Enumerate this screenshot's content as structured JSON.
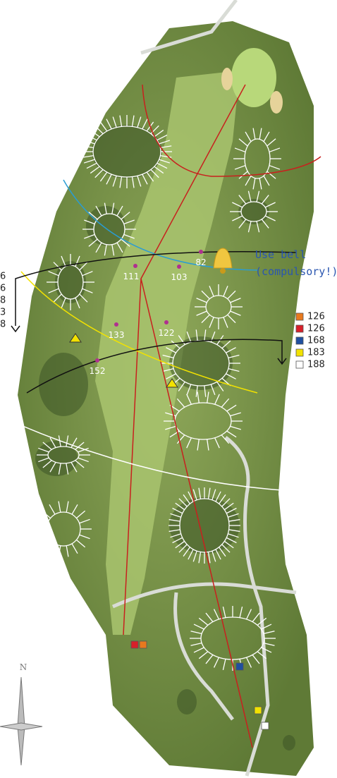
{
  "annotation": {
    "lines": [
      "Use bell",
      "(compulsory!)"
    ]
  },
  "distance_markers": [
    {
      "label": "82"
    },
    {
      "label": "111"
    },
    {
      "label": "103"
    },
    {
      "label": "133"
    },
    {
      "label": "122"
    },
    {
      "label": "152"
    }
  ],
  "tee_legend": [
    {
      "color": "#e8791e",
      "label": "126"
    },
    {
      "color": "#d8202a",
      "label": "126"
    },
    {
      "color": "#1f4fa0",
      "label": "168"
    },
    {
      "color": "#f2e200",
      "label": "183"
    },
    {
      "color": "#ffffff",
      "label": "188"
    }
  ],
  "left_legend_fragments": [
    "6",
    "6",
    "8",
    "3",
    "8"
  ],
  "compass": "N"
}
